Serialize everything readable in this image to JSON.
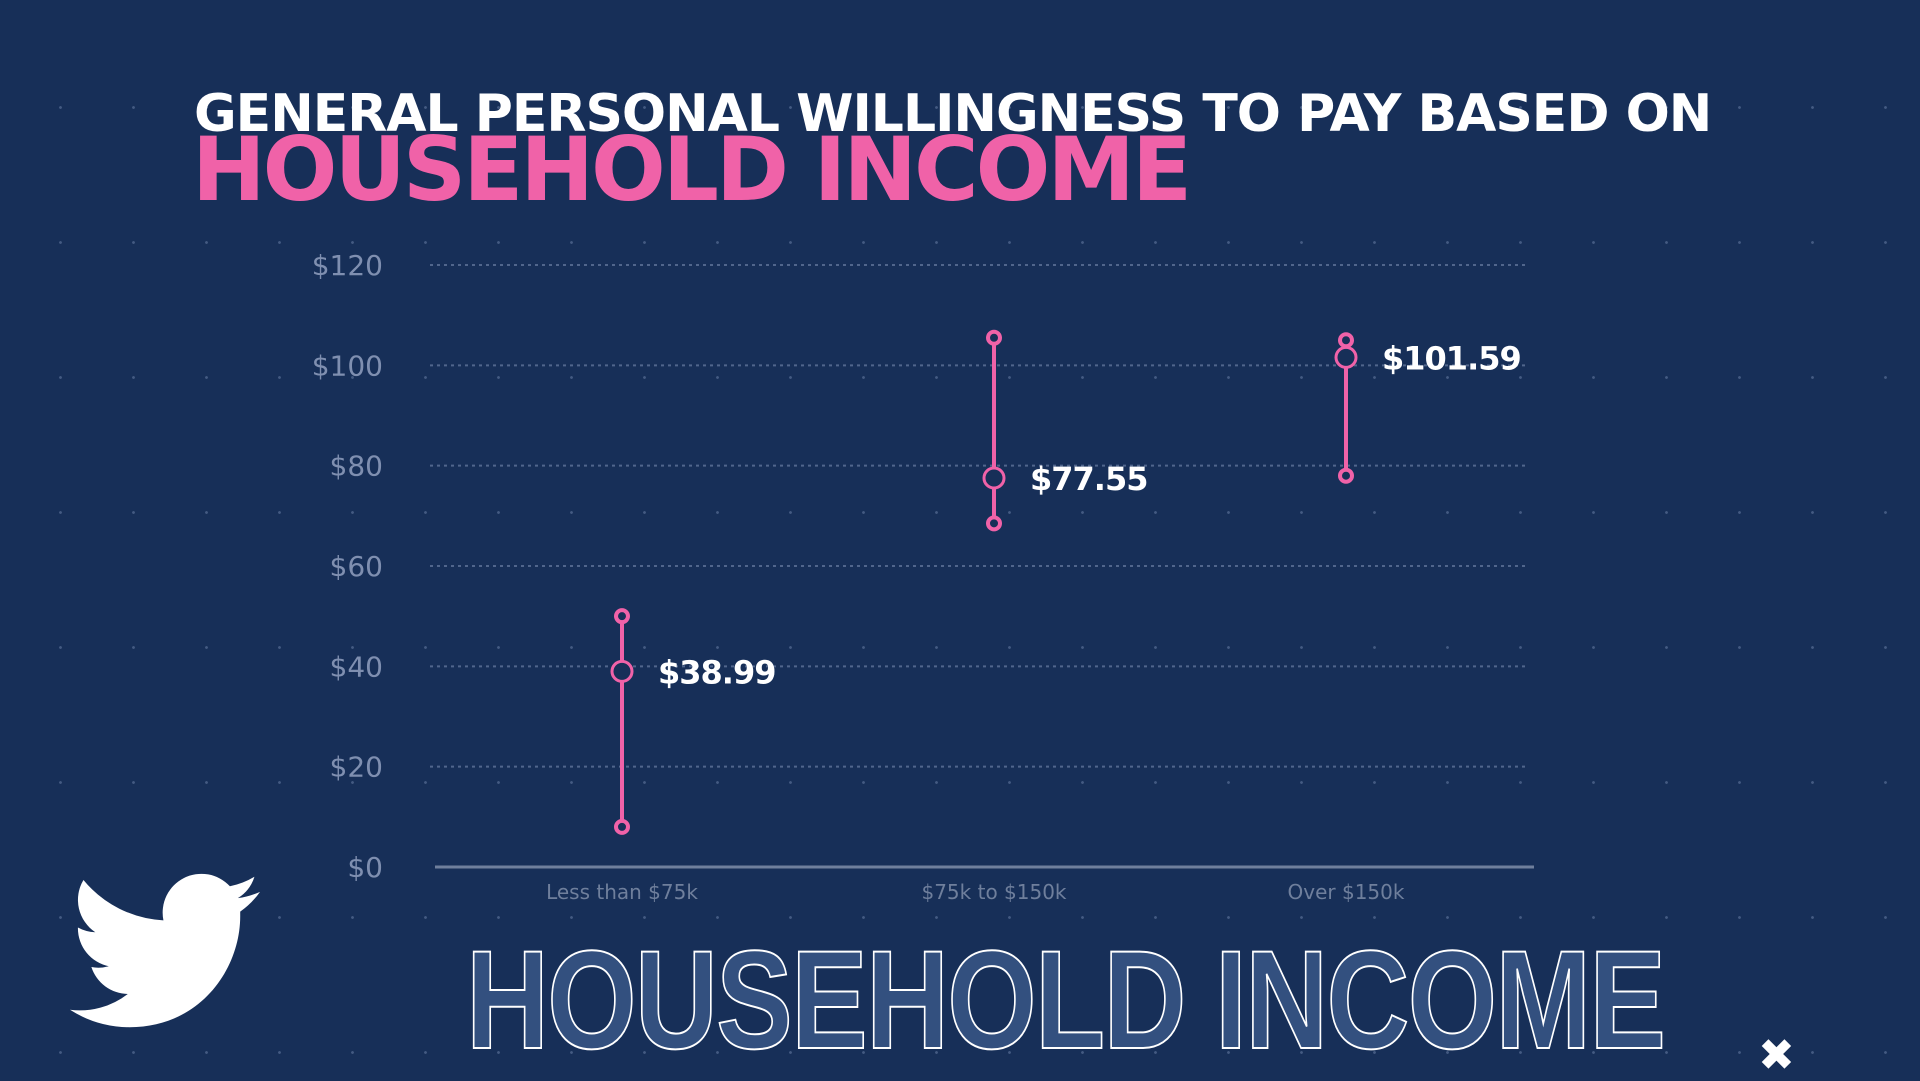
{
  "header": {
    "title_line1": "GENERAL PERSONAL WILLINGNESS TO PAY BASED ON",
    "title_line2": "HOUSEHOLD INCOME"
  },
  "footer": {
    "outline_text": "HOUSEHOLD INCOME",
    "logo": "twitter-bird-icon",
    "close_mark": "x-icon"
  },
  "colors": {
    "background": "#172f58",
    "accent": "#f062a8",
    "text": "#ffffff",
    "axis_text": "#7f8fb0"
  },
  "chart_data": {
    "type": "range-dot",
    "categories": [
      "Less than $75k",
      "$75k to $150k",
      "Over $150k"
    ],
    "series": [
      {
        "low": 8,
        "mean": 38.99,
        "high": 50,
        "label": "$38.99"
      },
      {
        "low": 68.5,
        "mean": 77.55,
        "high": 105.5,
        "label": "$77.55"
      },
      {
        "low": 78,
        "mean": 101.59,
        "high": 105,
        "label": "$101.59"
      }
    ],
    "yticks": [
      "$0",
      "$20",
      "$40",
      "$60",
      "$80",
      "$100",
      "$120"
    ],
    "ytick_values": [
      0,
      20,
      40,
      60,
      80,
      100,
      120
    ],
    "ylim": [
      0,
      120
    ],
    "grid": true
  }
}
